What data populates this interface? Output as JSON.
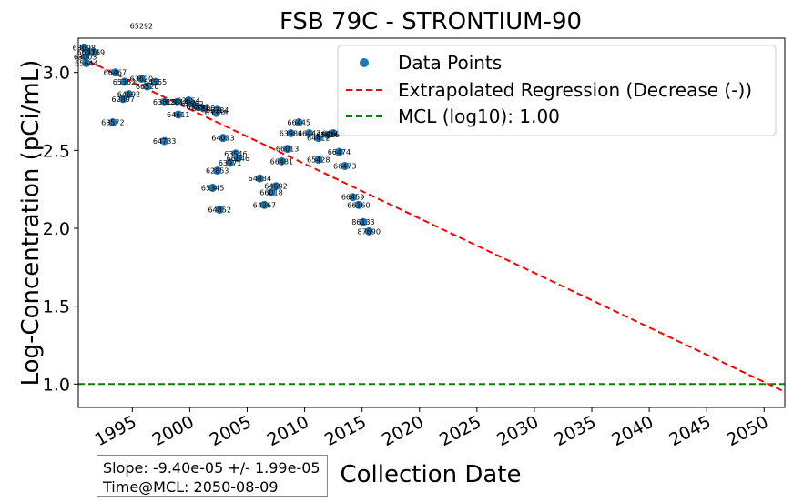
{
  "chart_data": {
    "type": "scatter",
    "title": "FSB 79C - STRONTIUM-90",
    "xlabel": "Collection Date",
    "ylabel": "Log-Concentration (pCi/mL)",
    "xlim": [
      1990.3,
      2051.8
    ],
    "ylim": [
      0.85,
      3.22
    ],
    "x_ticks": [
      1995,
      2000,
      2005,
      2010,
      2015,
      2020,
      2025,
      2030,
      2035,
      2040,
      2045,
      2050
    ],
    "y_ticks": [
      1.0,
      1.5,
      2.0,
      2.5,
      3.0
    ],
    "x_tick_labels": [
      "1995",
      "2000",
      "2005",
      "2010",
      "2015",
      "2020",
      "2025",
      "2030",
      "2035",
      "2040",
      "2045",
      "2050"
    ],
    "y_tick_labels": [
      "1.0",
      "1.5",
      "2.0",
      "2.5",
      "3.0"
    ],
    "grid": false,
    "legend_position": "top-right",
    "series": [
      {
        "name": "Data Points",
        "kind": "scatter",
        "color": "#1f77b4",
        "points": [
          {
            "x": 1990.8,
            "y": 3.16,
            "label": "63698"
          },
          {
            "x": 1991.2,
            "y": 3.13,
            "label": "65216"
          },
          {
            "x": 1990.9,
            "y": 3.1,
            "label": "63003"
          },
          {
            "x": 1991.6,
            "y": 3.13,
            "label": "65219"
          },
          {
            "x": 1991.0,
            "y": 3.06,
            "label": "65644"
          },
          {
            "x": 1993.5,
            "y": 3.0,
            "label": "66467"
          },
          {
            "x": 1994.3,
            "y": 2.94,
            "label": "65362"
          },
          {
            "x": 1995.8,
            "y": 2.96,
            "label": "63620"
          },
          {
            "x": 1997.0,
            "y": 2.94,
            "label": "64555"
          },
          {
            "x": 1996.3,
            "y": 2.91,
            "label": "66520"
          },
          {
            "x": 1994.7,
            "y": 2.86,
            "label": "64692"
          },
          {
            "x": 1994.2,
            "y": 2.83,
            "label": "62897"
          },
          {
            "x": 1997.8,
            "y": 2.81,
            "label": "63813"
          },
          {
            "x": 1998.9,
            "y": 2.81,
            "label": "62814"
          },
          {
            "x": 1999.9,
            "y": 2.82,
            "label": "63654"
          },
          {
            "x": 2000.2,
            "y": 2.8,
            "label": "62662"
          },
          {
            "x": 2000.7,
            "y": 2.78,
            "label": "63891"
          },
          {
            "x": 2001.2,
            "y": 2.77,
            "label": "65800"
          },
          {
            "x": 2002.4,
            "y": 2.76,
            "label": "66384"
          },
          {
            "x": 2002.3,
            "y": 2.74,
            "label": "63338"
          },
          {
            "x": 1999.0,
            "y": 2.73,
            "label": "64611"
          },
          {
            "x": 1993.3,
            "y": 2.68,
            "label": "63572"
          },
          {
            "x": 1997.8,
            "y": 2.56,
            "label": "64783"
          },
          {
            "x": 2002.9,
            "y": 2.58,
            "label": "64013"
          },
          {
            "x": 2004.0,
            "y": 2.48,
            "label": "63546"
          },
          {
            "x": 2004.2,
            "y": 2.45,
            "label": "66646"
          },
          {
            "x": 2003.5,
            "y": 2.42,
            "label": "63971"
          },
          {
            "x": 2002.4,
            "y": 2.37,
            "label": "62853"
          },
          {
            "x": 2006.1,
            "y": 2.32,
            "label": "64834"
          },
          {
            "x": 2007.5,
            "y": 2.27,
            "label": "64692"
          },
          {
            "x": 2007.1,
            "y": 2.23,
            "label": "66018"
          },
          {
            "x": 2002.0,
            "y": 2.26,
            "label": "65345"
          },
          {
            "x": 2006.5,
            "y": 2.15,
            "label": "64367"
          },
          {
            "x": 2002.6,
            "y": 2.12,
            "label": "64852"
          },
          {
            "x": 2009.5,
            "y": 2.68,
            "label": "66445"
          },
          {
            "x": 2008.8,
            "y": 2.61,
            "label": "63984"
          },
          {
            "x": 2010.4,
            "y": 2.61,
            "label": "66447"
          },
          {
            "x": 2011.2,
            "y": 2.58,
            "label": "64412"
          },
          {
            "x": 2012.0,
            "y": 2.6,
            "label": "65626"
          },
          {
            "x": 2012.5,
            "y": 2.61,
            "label": "64606"
          },
          {
            "x": 2008.5,
            "y": 2.51,
            "label": "66013"
          },
          {
            "x": 2008.0,
            "y": 2.43,
            "label": "66481"
          },
          {
            "x": 2011.2,
            "y": 2.44,
            "label": "65428"
          },
          {
            "x": 2013.0,
            "y": 2.49,
            "label": "66474"
          },
          {
            "x": 2013.5,
            "y": 2.4,
            "label": "66473"
          },
          {
            "x": 2014.2,
            "y": 2.2,
            "label": "66459"
          },
          {
            "x": 2014.7,
            "y": 2.15,
            "label": "66160"
          },
          {
            "x": 2015.1,
            "y": 2.04,
            "label": "86133"
          },
          {
            "x": 2015.6,
            "y": 1.98,
            "label": "87690"
          },
          {
            "x": 1995.8,
            "y": 3.3,
            "label": "65292"
          }
        ]
      },
      {
        "name": "Extrapolated Regression (Decrease (-))",
        "kind": "line",
        "style": "dashed",
        "color": "#ff0000",
        "x": [
          1990.4,
          2051.8
        ],
        "y": [
          3.1,
          0.95
        ]
      },
      {
        "name": "MCL (log10): 1.00",
        "kind": "hline",
        "style": "dashed",
        "color": "#008000",
        "y": 1.0
      }
    ],
    "stats": {
      "slope_text": "Slope: -9.40e-05 +/- 1.99e-05",
      "time_at_mcl_text": "Time@MCL: 2050-08-09"
    }
  }
}
